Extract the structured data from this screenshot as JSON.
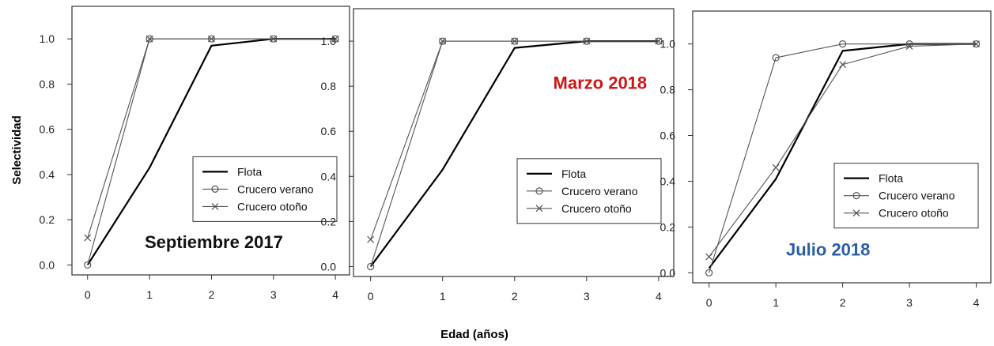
{
  "figure": {
    "xlabel": "Edad (años)",
    "ylabel": "Selectividad"
  },
  "legend_items": [
    {
      "label": "Flota",
      "marker": "none",
      "stroke_color": "#000000"
    },
    {
      "label": "Crucero verano",
      "marker": "circle",
      "stroke_color": "#555555"
    },
    {
      "label": "Crucero otoño",
      "marker": "cross",
      "stroke_color": "#555555"
    }
  ],
  "chart_data": [
    {
      "type": "line",
      "label": "Septiembre 2017",
      "label_color": "#111111",
      "label_position": "bottom-left",
      "legend_position": "center-right",
      "xlabel": "Edad (años)",
      "ylabel": "Selectividad",
      "x": [
        0,
        1,
        2,
        3,
        4
      ],
      "x_ticks": [
        "0",
        "1",
        "2",
        "3",
        "4"
      ],
      "y_ticks": [
        "0.0",
        "0.2",
        "0.4",
        "0.6",
        "0.8",
        "1.0"
      ],
      "xlim": [
        -0.15,
        4.1
      ],
      "ylim": [
        -0.03,
        1.13
      ],
      "grid": false,
      "series": [
        {
          "name": "Flota",
          "values": [
            0.0,
            0.43,
            0.97,
            1.0,
            1.0
          ]
        },
        {
          "name": "Crucero verano",
          "values": [
            0.0,
            1.0,
            1.0,
            1.0,
            1.0
          ]
        },
        {
          "name": "Crucero otoño",
          "values": [
            0.12,
            1.0,
            1.0,
            1.0,
            1.0
          ]
        }
      ]
    },
    {
      "type": "line",
      "label": "Marzo 2018",
      "label_color": "#d11414",
      "label_position": "top-right",
      "legend_position": "center-right",
      "xlabel": "Edad (años)",
      "ylabel": "Selectividad",
      "x": [
        0,
        1,
        2,
        3,
        4
      ],
      "x_ticks": [
        "0",
        "1",
        "2",
        "3",
        "4"
      ],
      "y_ticks": [
        "0.0",
        "0.2",
        "0.4",
        "0.6",
        "0.8",
        "1.0"
      ],
      "xlim": [
        -0.15,
        4.1
      ],
      "ylim": [
        -0.03,
        1.13
      ],
      "grid": false,
      "series": [
        {
          "name": "Flota",
          "values": [
            0.0,
            0.43,
            0.97,
            1.0,
            1.0
          ]
        },
        {
          "name": "Crucero verano",
          "values": [
            0.0,
            1.0,
            1.0,
            1.0,
            1.0
          ]
        },
        {
          "name": "Crucero otoño",
          "values": [
            0.12,
            1.0,
            1.0,
            1.0,
            1.0
          ]
        }
      ]
    },
    {
      "type": "line",
      "label": "Julio 2018",
      "label_color": "#2a5fa5",
      "label_position": "bottom-center",
      "legend_position": "center-right",
      "xlabel": "Edad (años)",
      "ylabel": "Selectividad",
      "x": [
        0,
        1,
        2,
        3,
        4
      ],
      "x_ticks": [
        "0",
        "1",
        "2",
        "3",
        "4"
      ],
      "y_ticks": [
        "0.0",
        "0.2",
        "0.4",
        "0.6",
        "0.8",
        "1.0"
      ],
      "xlim": [
        -0.15,
        4.1
      ],
      "ylim": [
        -0.03,
        1.13
      ],
      "grid": false,
      "series": [
        {
          "name": "Flota",
          "values": [
            0.02,
            0.41,
            0.97,
            1.0,
            1.0
          ]
        },
        {
          "name": "Crucero verano",
          "values": [
            0.0,
            0.94,
            1.0,
            1.0,
            1.0
          ]
        },
        {
          "name": "Crucero otoño",
          "values": [
            0.07,
            0.46,
            0.91,
            0.99,
            1.0
          ]
        }
      ]
    }
  ]
}
